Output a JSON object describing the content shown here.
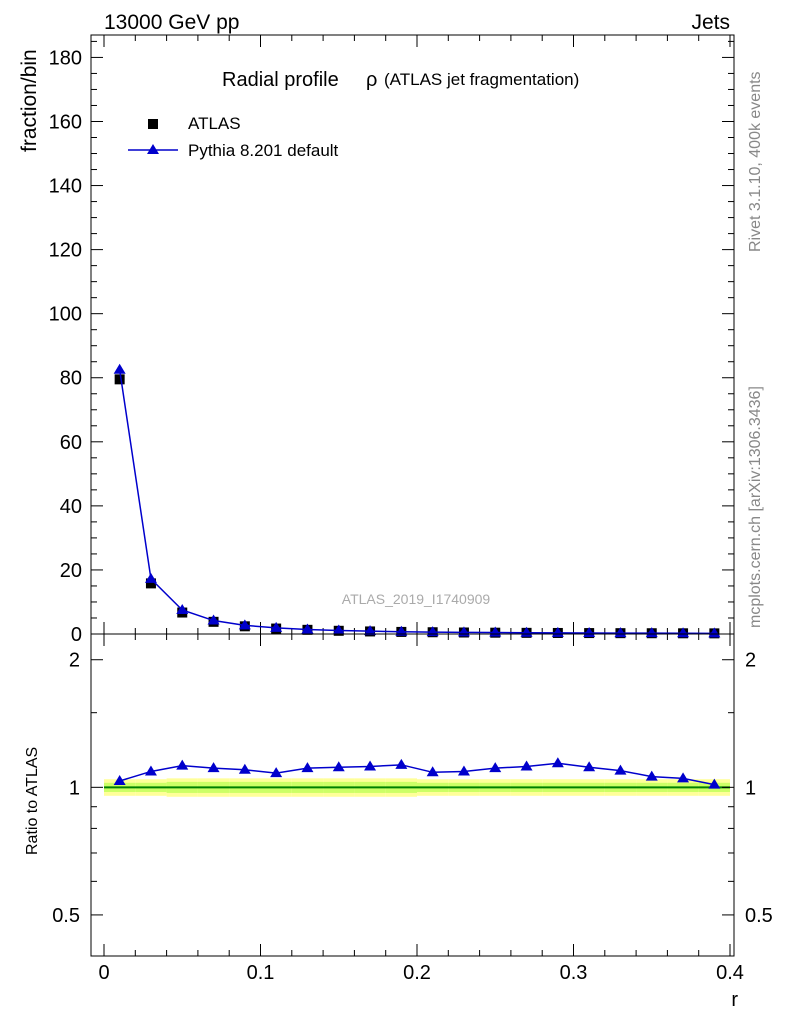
{
  "header": {
    "left": "13000 GeV pp",
    "right": "Jets"
  },
  "side_text": {
    "rivet": "Rivet 3.1.10,  400k events",
    "mcplots": "mcplots.cern.ch [arXiv:1306.3436]"
  },
  "watermark": "ATLAS_2019_I1740909",
  "colors": {
    "data": "#000000",
    "mc": "#0000cc",
    "band_inner": "#ccff66",
    "band_outer": "#ffff99",
    "ref_line": "#008000"
  },
  "chart_data": [
    {
      "type": "line",
      "panel": "main",
      "title": "Radial profile",
      "title_symbol": "ρ",
      "subtitle": "(ATLAS jet fragmentation)",
      "xlabel": "",
      "ylabel": "fraction/bin",
      "xlim": [
        0,
        0.4
      ],
      "ylim": [
        0,
        187
      ],
      "yticks": [
        0,
        20,
        40,
        60,
        80,
        100,
        120,
        140,
        160,
        180
      ],
      "legend": {
        "placement": "top-left"
      },
      "x": [
        0.01,
        0.03,
        0.05,
        0.07,
        0.09,
        0.11,
        0.13,
        0.15,
        0.17,
        0.19,
        0.21,
        0.23,
        0.25,
        0.27,
        0.29,
        0.31,
        0.33,
        0.35,
        0.37,
        0.39
      ],
      "series": [
        {
          "name": "ATLAS",
          "marker": "square",
          "values": [
            79.5,
            15.8,
            6.7,
            3.8,
            2.4,
            1.7,
            1.3,
            1.0,
            0.8,
            0.65,
            0.55,
            0.47,
            0.41,
            0.36,
            0.32,
            0.29,
            0.26,
            0.24,
            0.22,
            0.2
          ]
        },
        {
          "name": "Pythia 8.201 default",
          "marker": "triangle",
          "values": [
            82.5,
            17.2,
            7.5,
            4.2,
            2.7,
            1.9,
            1.4,
            1.1,
            0.9,
            0.72,
            0.6,
            0.52,
            0.45,
            0.4,
            0.35,
            0.32,
            0.28,
            0.26,
            0.24,
            0.21
          ]
        }
      ]
    },
    {
      "type": "line",
      "panel": "ratio",
      "xlabel": "r",
      "ylabel": "Ratio to ATLAS",
      "xlim": [
        0,
        0.4
      ],
      "ylim": [
        0.4,
        2.3
      ],
      "yticks": [
        0.5,
        1,
        2
      ],
      "xticks": [
        0,
        0.1,
        0.2,
        0.3,
        0.4
      ],
      "x": [
        0.01,
        0.03,
        0.05,
        0.07,
        0.09,
        0.11,
        0.13,
        0.15,
        0.17,
        0.19,
        0.21,
        0.23,
        0.25,
        0.27,
        0.29,
        0.31,
        0.33,
        0.35,
        0.37,
        0.39
      ],
      "series": [
        {
          "name": "Pythia 8.201 default",
          "values": [
            1.035,
            1.09,
            1.125,
            1.11,
            1.1,
            1.08,
            1.11,
            1.115,
            1.12,
            1.13,
            1.085,
            1.09,
            1.11,
            1.12,
            1.14,
            1.115,
            1.095,
            1.06,
            1.05,
            1.015
          ]
        }
      ],
      "band_inner_halfwidth": [
        0.025,
        0.025,
        0.03,
        0.03,
        0.03,
        0.03,
        0.03,
        0.03,
        0.03,
        0.03,
        0.025,
        0.025,
        0.025,
        0.025,
        0.025,
        0.025,
        0.025,
        0.025,
        0.025,
        0.025
      ],
      "band_outer_halfwidth": [
        0.045,
        0.045,
        0.05,
        0.05,
        0.05,
        0.05,
        0.05,
        0.05,
        0.05,
        0.05,
        0.045,
        0.045,
        0.045,
        0.045,
        0.045,
        0.045,
        0.045,
        0.045,
        0.045,
        0.045
      ]
    }
  ]
}
